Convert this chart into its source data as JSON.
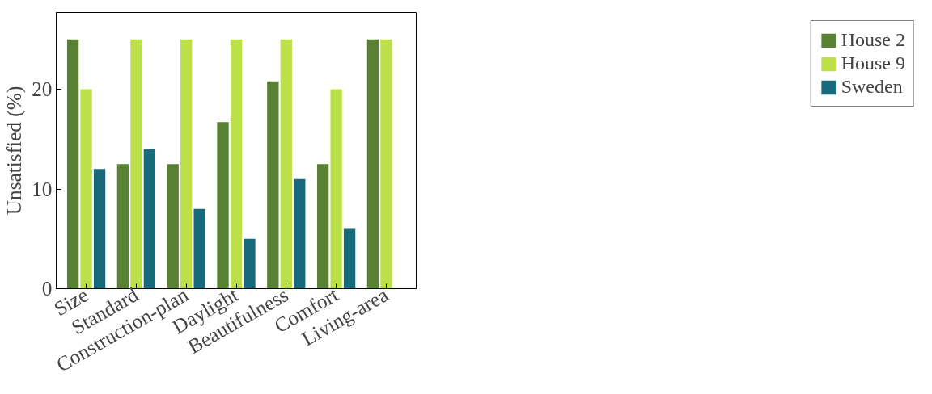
{
  "chart_data": {
    "type": "bar",
    "ylabel": "Unsatisfied (%)",
    "categories": [
      "Size",
      "Standard",
      "Construction-plan",
      "Daylight",
      "Beautifulness",
      "Comfort",
      "Living-area"
    ],
    "series": [
      {
        "name": "House 2",
        "color": "#588133",
        "values": [
          25,
          12.5,
          12.5,
          16.7,
          20.8,
          12.5,
          25
        ]
      },
      {
        "name": "House 9",
        "color": "#bbe04a",
        "values": [
          20,
          25,
          25,
          25,
          25,
          20,
          25
        ]
      },
      {
        "name": "Sweden",
        "color": "#176a7c",
        "values": [
          12,
          14,
          8,
          5,
          11,
          6,
          0
        ]
      }
    ],
    "ylim": [
      0,
      27.7
    ],
    "yticks": [
      0,
      10,
      20
    ],
    "grid": false,
    "legend": "right"
  }
}
